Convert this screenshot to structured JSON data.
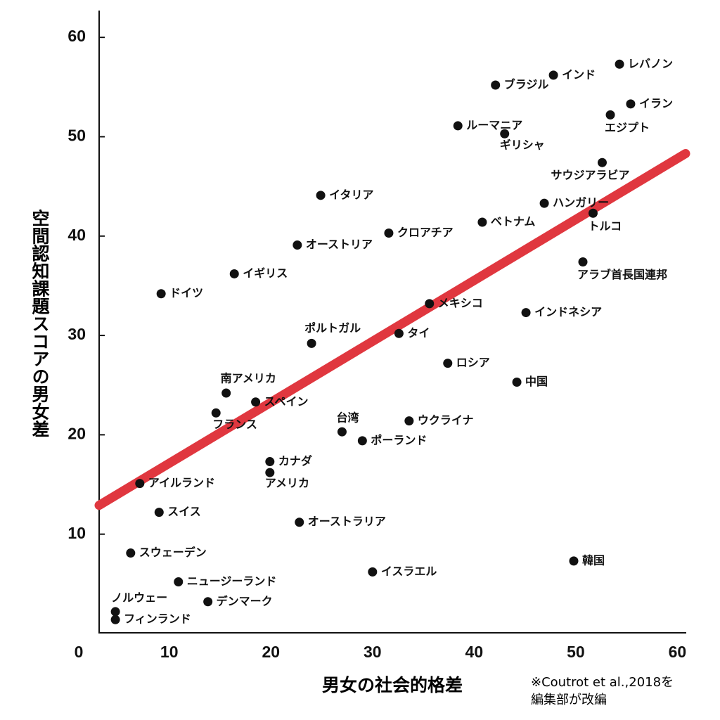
{
  "chart_data": {
    "type": "scatter",
    "x_label": "男女の社会的格差",
    "y_label": "空間認知課題スコアの男女差",
    "note": [
      "※Coutrot et al.,2018を",
      "編集部が改編"
    ],
    "origin_label": "0",
    "color": "#111111",
    "labels": [
      "レバノン",
      "インド",
      "ブラジル",
      "イラン",
      "エジプト",
      "ルーマニア",
      "ギリシャ",
      "サウジアラビア",
      "ハンガリー",
      "トルコ",
      "ベトナム",
      "イタリア",
      "クロアチア",
      "オーストリア",
      "イギリス",
      "アラブ首長国連邦",
      "ドイツ",
      "メキシコ",
      "インドネシア",
      "ポルトガル",
      "タイ",
      "ロシア",
      "中国",
      "南アメリカ",
      "スペイン",
      "フランス",
      "台湾",
      "ウクライナ",
      "ポーランド",
      "カナダ",
      "アメリカ",
      "アイルランド",
      "スイス",
      "オーストラリア",
      "韓国",
      "スウェーデン",
      "イスラエル",
      "ニュージーランド",
      "デンマーク",
      "ノルウェー",
      "フィンランド"
    ],
    "x": [
      54.3,
      47.8,
      42.1,
      55.4,
      53.4,
      38.4,
      43.0,
      52.6,
      46.9,
      51.7,
      40.8,
      24.9,
      31.6,
      22.6,
      16.4,
      50.7,
      9.2,
      35.6,
      45.1,
      24.0,
      32.6,
      37.4,
      44.2,
      15.6,
      18.5,
      14.6,
      27.0,
      33.6,
      29.0,
      19.9,
      19.9,
      7.1,
      9.0,
      22.8,
      49.8,
      6.2,
      30.0,
      10.9,
      13.8,
      4.7,
      4.7
    ],
    "y": [
      57.3,
      56.2,
      55.2,
      53.3,
      52.2,
      51.1,
      50.3,
      47.4,
      43.3,
      42.3,
      41.4,
      44.1,
      40.3,
      39.1,
      36.2,
      37.4,
      34.2,
      33.2,
      32.3,
      29.2,
      30.2,
      27.2,
      25.3,
      24.2,
      23.3,
      22.2,
      20.3,
      21.4,
      19.4,
      17.3,
      16.2,
      15.1,
      12.2,
      11.2,
      7.3,
      8.1,
      6.2,
      5.2,
      3.2,
      2.2,
      1.4
    ],
    "trend": {
      "x": [
        3.1,
        60.8
      ],
      "y": [
        12.9,
        48.3
      ],
      "color": "#e0373f"
    },
    "xlim": [
      3.1,
      60.8
    ],
    "ylim": [
      0,
      62.7
    ],
    "xticks": [
      10,
      20,
      30,
      40,
      50,
      60
    ],
    "yticks": [
      10,
      20,
      30,
      40,
      50,
      60
    ]
  }
}
